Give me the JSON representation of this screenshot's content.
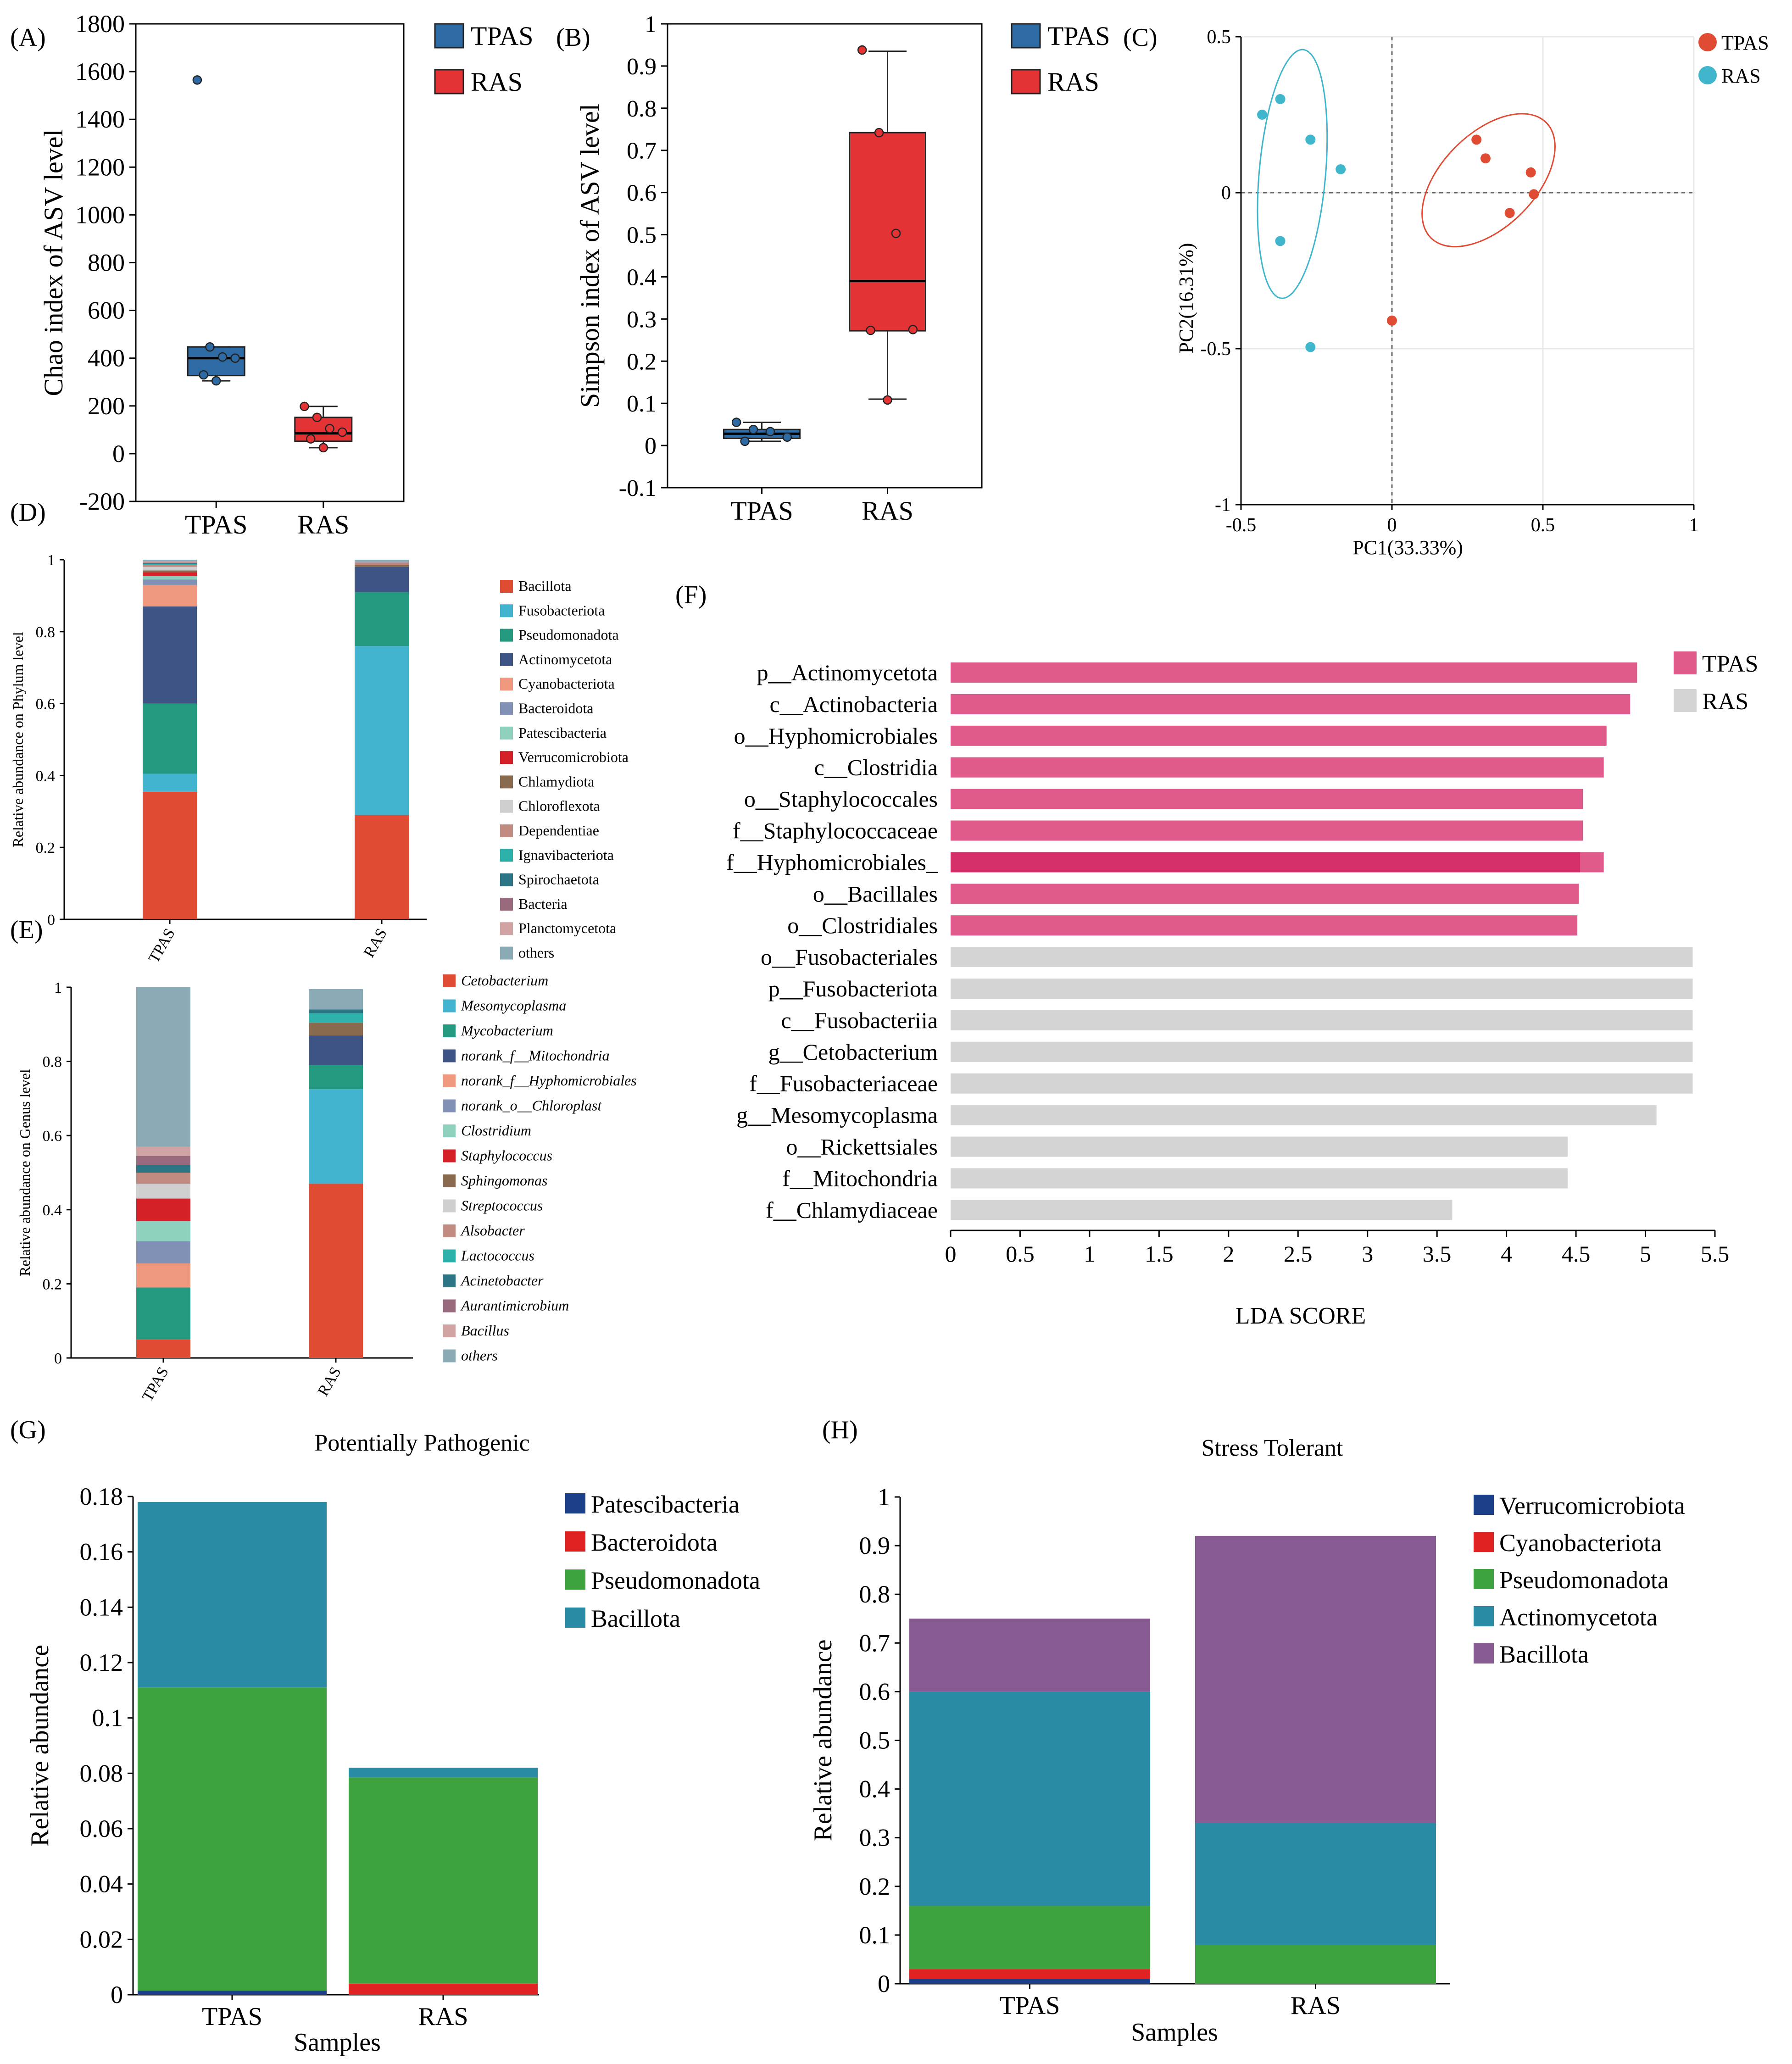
{
  "colors": {
    "tpas": "#2e6aa3",
    "ras": "#e33335",
    "pca_tpas": "#e04b34",
    "pca_ras": "#3fb6cc",
    "lefse_tpas": "#e05a8c",
    "lefse_tpas_dark": "#d6306a",
    "lefse_ras": "#d4d4d4",
    "lefse_ras_dark": "#c4c4c4",
    "axis": "#000000",
    "grid": "#e8e8e8"
  },
  "chart_data": [
    {
      "panel": "A",
      "type": "boxplot",
      "ylabel": "Chao index of ASV level",
      "ylim": [
        -200,
        1800
      ],
      "yticks": [
        -200,
        0,
        200,
        400,
        600,
        800,
        1000,
        1200,
        1400,
        1600,
        1800
      ],
      "categories": [
        "TPAS",
        "RAS"
      ],
      "legend": [
        "TPAS",
        "RAS"
      ],
      "legend_position": "right-outside",
      "boxes": [
        {
          "name": "TPAS",
          "q1": 327,
          "median": 400,
          "q3": 447,
          "whisker_low": 305,
          "whisker_high": 447,
          "points": [
            1565,
            447,
            405,
            400,
            330,
            305
          ]
        },
        {
          "name": "RAS",
          "q1": 52,
          "median": 85,
          "q3": 152,
          "whisker_low": 25,
          "whisker_high": 198,
          "points": [
            198,
            152,
            105,
            90,
            62,
            25
          ]
        }
      ]
    },
    {
      "panel": "B",
      "type": "boxplot",
      "ylabel": "Simpson index of ASV level",
      "ylim": [
        -0.1,
        1
      ],
      "yticks": [
        -0.1,
        0,
        0.1,
        0.2,
        0.3,
        0.4,
        0.5,
        0.6,
        0.7,
        0.8,
        0.9,
        1
      ],
      "categories": [
        "TPAS",
        "RAS"
      ],
      "legend": [
        "TPAS",
        "RAS"
      ],
      "legend_position": "right-outside",
      "boxes": [
        {
          "name": "TPAS",
          "q1": 0.017,
          "median": 0.028,
          "q3": 0.038,
          "whisker_low": 0.01,
          "whisker_high": 0.055,
          "points": [
            0.055,
            0.038,
            0.033,
            0.02,
            0.01
          ]
        },
        {
          "name": "RAS",
          "q1": 0.272,
          "median": 0.39,
          "q3": 0.742,
          "whisker_low": 0.11,
          "whisker_high": 0.935,
          "points": [
            0.938,
            0.742,
            0.503,
            0.275,
            0.273,
            0.108
          ]
        }
      ]
    },
    {
      "panel": "C",
      "type": "scatter",
      "xlabel": "PC1(33.33%)",
      "ylabel": "PC2(16.31%)",
      "xlim": [
        -0.5,
        1
      ],
      "ylim": [
        -1,
        0.5
      ],
      "xticks": [
        -0.5,
        0,
        0.5,
        1
      ],
      "yticks": [
        0.5,
        0,
        -0.5,
        -1
      ],
      "legend_position": "top-right",
      "series": [
        {
          "name": "TPAS",
          "points": [
            [
              0.28,
              0.17
            ],
            [
              0.31,
              0.11
            ],
            [
              0.46,
              0.065
            ],
            [
              0.47,
              -0.005
            ],
            [
              0.39,
              -0.065
            ],
            [
              0.0,
              -0.41
            ]
          ],
          "ellipse": {
            "cx": 0.32,
            "cy": 0.04,
            "rx": 0.27,
            "ry": 0.15,
            "angle": -45
          }
        },
        {
          "name": "RAS",
          "points": [
            [
              -0.43,
              0.25
            ],
            [
              -0.37,
              0.3
            ],
            [
              -0.27,
              0.17
            ],
            [
              -0.17,
              0.075
            ],
            [
              -0.37,
              -0.155
            ],
            [
              -0.27,
              -0.495
            ]
          ],
          "ellipse": {
            "cx": -0.33,
            "cy": 0.06,
            "rx": 0.11,
            "ry": 0.4,
            "angle": 5
          }
        }
      ]
    },
    {
      "panel": "D",
      "type": "bar",
      "stacked": true,
      "ylabel": "Relative abundance on Phylum level",
      "ylim": [
        0,
        1
      ],
      "yticks": [
        0,
        0.2,
        0.4,
        0.6,
        0.8,
        1
      ],
      "categories": [
        "TPAS",
        "RAS"
      ],
      "legend_position": "right-outside",
      "series": [
        {
          "name": "Bacillota",
          "color": "#e04b34",
          "values": [
            0.355,
            0.29
          ]
        },
        {
          "name": "Fusobacteriota",
          "color": "#42b4d0",
          "values": [
            0.05,
            0.47
          ]
        },
        {
          "name": "Pseudomonadota",
          "color": "#239a80",
          "values": [
            0.195,
            0.15
          ]
        },
        {
          "name": "Actinomycetota",
          "color": "#3d5485",
          "values": [
            0.27,
            0.07
          ]
        },
        {
          "name": "Cyanobacteriota",
          "color": "#f0987e",
          "values": [
            0.06,
            0.0
          ]
        },
        {
          "name": "Bacteroidota",
          "color": "#8091b5",
          "values": [
            0.015,
            0.0
          ]
        },
        {
          "name": "Patescibacteria",
          "color": "#8fd0bf",
          "values": [
            0.01,
            0.0
          ]
        },
        {
          "name": "Verrucomicrobiota",
          "color": "#d62027",
          "values": [
            0.01,
            0.0
          ]
        },
        {
          "name": "Chlamydiota",
          "color": "#8a6a4e",
          "values": [
            0.005,
            0.005
          ]
        },
        {
          "name": "Chloroflexota",
          "color": "#cfcfcf",
          "values": [
            0.01,
            0.0
          ]
        },
        {
          "name": "Dependentiae",
          "color": "#c28b82",
          "values": [
            0.005,
            0.005
          ]
        },
        {
          "name": "Ignavibacteriota",
          "color": "#2db1ab",
          "values": [
            0.003,
            0.0
          ]
        },
        {
          "name": "Spirochaetota",
          "color": "#2b7585",
          "values": [
            0.002,
            0.0
          ]
        },
        {
          "name": "Bacteria",
          "color": "#99697e",
          "values": [
            0.002,
            0.002
          ]
        },
        {
          "name": "Planctomycetota",
          "color": "#d1a3a3",
          "values": [
            0.003,
            0.002
          ]
        },
        {
          "name": "others",
          "color": "#8aaab5",
          "values": [
            0.005,
            0.006
          ]
        }
      ]
    },
    {
      "panel": "E",
      "type": "bar",
      "stacked": true,
      "ylabel": "Relative abundance on Genus level",
      "ylim": [
        0,
        1
      ],
      "yticks": [
        0,
        0.2,
        0.4,
        0.6,
        0.8,
        1
      ],
      "categories": [
        "TPAS",
        "RAS"
      ],
      "legend_position": "right-outside",
      "series": [
        {
          "name": "Cetobacterium",
          "color": "#e04b34",
          "values": [
            0.05,
            0.47
          ]
        },
        {
          "name": "Mesomycoplasma",
          "color": "#42b4d0",
          "values": [
            0.0,
            0.255
          ]
        },
        {
          "name": "Mycobacterium",
          "color": "#239a80",
          "values": [
            0.14,
            0.065
          ]
        },
        {
          "name": "norank_f__Mitochondria",
          "color": "#3d5485",
          "values": [
            0.0,
            0.08
          ]
        },
        {
          "name": "norank_f__Hyphomicrobiales",
          "color": "#f0987e",
          "values": [
            0.065,
            0.0
          ]
        },
        {
          "name": "norank_o__Chloroplast",
          "color": "#8091b5",
          "values": [
            0.06,
            0.0
          ]
        },
        {
          "name": "Clostridium",
          "color": "#8fd0bf",
          "values": [
            0.055,
            0.0
          ]
        },
        {
          "name": "Staphylococcus",
          "color": "#d62027",
          "values": [
            0.06,
            0.0
          ]
        },
        {
          "name": "Sphingomonas",
          "color": "#8a6a4e",
          "values": [
            0.0,
            0.035
          ]
        },
        {
          "name": "Streptococcus",
          "color": "#cfcfcf",
          "values": [
            0.04,
            0.0
          ]
        },
        {
          "name": "Alsobacter",
          "color": "#c28b82",
          "values": [
            0.03,
            0.0
          ]
        },
        {
          "name": "Lactococcus",
          "color": "#2db1ab",
          "values": [
            0.0,
            0.025
          ]
        },
        {
          "name": "Acinetobacter",
          "color": "#2b7585",
          "values": [
            0.02,
            0.01
          ]
        },
        {
          "name": "Aurantimicrobium",
          "color": "#99697e",
          "values": [
            0.025,
            0.0
          ]
        },
        {
          "name": "Bacillus",
          "color": "#d1a3a3",
          "values": [
            0.025,
            0.0
          ]
        },
        {
          "name": "others",
          "color": "#8aaab5",
          "values": [
            0.43,
            0.055
          ]
        }
      ]
    },
    {
      "panel": "F",
      "type": "bar",
      "orientation": "horizontal",
      "xlabel": "LDA SCORE",
      "xlim": [
        0,
        5.5
      ],
      "xticks": [
        0,
        0.5,
        1,
        1.5,
        2,
        2.5,
        3,
        3.5,
        4,
        4.5,
        5,
        5.5
      ],
      "legend": [
        "TPAS",
        "RAS"
      ],
      "legend_position": "top-right",
      "items": [
        {
          "label": "p__Actinomycetota",
          "value": 4.94,
          "group": "TPAS"
        },
        {
          "label": "c__Actinobacteria",
          "value": 4.89,
          "group": "TPAS"
        },
        {
          "label": "o__Hyphomicrobiales",
          "value": 4.72,
          "group": "TPAS"
        },
        {
          "label": "c__Clostridia",
          "value": 4.7,
          "group": "TPAS"
        },
        {
          "label": "o__Staphylococcales",
          "value": 4.55,
          "group": "TPAS"
        },
        {
          "label": "f__Staphylococcaceae",
          "value": 4.55,
          "group": "TPAS"
        },
        {
          "label": "f__Hyphomicrobiales_",
          "value": 4.7,
          "group": "TPAS",
          "inner_value": 4.53
        },
        {
          "label": "o__Bacillales",
          "value": 4.52,
          "group": "TPAS"
        },
        {
          "label": "o__Clostridiales",
          "value": 4.51,
          "group": "TPAS"
        },
        {
          "label": "o__Fusobacteriales",
          "value": 5.34,
          "group": "RAS"
        },
        {
          "label": "p__Fusobacteriota",
          "value": 5.34,
          "group": "RAS"
        },
        {
          "label": "c__Fusobacteriia",
          "value": 5.34,
          "group": "RAS"
        },
        {
          "label": "g__Cetobacterium",
          "value": 5.34,
          "group": "RAS"
        },
        {
          "label": "f__Fusobacteriaceae",
          "value": 5.34,
          "group": "RAS"
        },
        {
          "label": "g__Mesomycoplasma",
          "value": 5.08,
          "group": "RAS"
        },
        {
          "label": "o__Rickettsiales",
          "value": 4.44,
          "group": "RAS"
        },
        {
          "label": "f__Mitochondria",
          "value": 4.44,
          "group": "RAS"
        },
        {
          "label": "f__Chlamydiaceae",
          "value": 3.61,
          "group": "RAS"
        }
      ]
    },
    {
      "panel": "G",
      "type": "bar",
      "stacked": true,
      "title": "Potentially Pathogenic",
      "xlabel": "Samples",
      "ylabel": "Relative abundance",
      "ylim": [
        0,
        0.18
      ],
      "yticks": [
        0,
        0.02,
        0.04,
        0.06,
        0.08,
        0.1,
        0.12,
        0.14,
        0.16,
        0.18
      ],
      "categories": [
        "TPAS",
        "RAS"
      ],
      "legend_position": "right-outside",
      "series": [
        {
          "name": "Patescibacteria",
          "color": "#1c3f8a",
          "values": [
            0.0015,
            0.0
          ]
        },
        {
          "name": "Bacteroidota",
          "color": "#e02222",
          "values": [
            0.0,
            0.004
          ]
        },
        {
          "name": "Pseudomonadota",
          "color": "#3ea33e",
          "values": [
            0.1095,
            0.0745
          ]
        },
        {
          "name": "Bacillota",
          "color": "#2a8ca4",
          "values": [
            0.067,
            0.0035
          ]
        }
      ]
    },
    {
      "panel": "H",
      "type": "bar",
      "stacked": true,
      "title": "Stress Tolerant",
      "xlabel": "Samples",
      "ylabel": "Relative abundance",
      "ylim": [
        0,
        1
      ],
      "yticks": [
        0,
        0.1,
        0.2,
        0.3,
        0.4,
        0.5,
        0.6,
        0.7,
        0.8,
        0.9,
        1
      ],
      "categories": [
        "TPAS",
        "RAS"
      ],
      "legend_position": "right-outside",
      "series": [
        {
          "name": "Verrucomicrobiota",
          "color": "#1c3f8a",
          "values": [
            0.01,
            0.0
          ]
        },
        {
          "name": "Cyanobacteriota",
          "color": "#e02222",
          "values": [
            0.02,
            0.0
          ]
        },
        {
          "name": "Pseudomonadota",
          "color": "#3ea33e",
          "values": [
            0.13,
            0.08
          ]
        },
        {
          "name": "Actinomycetota",
          "color": "#2a8ca4",
          "values": [
            0.44,
            0.25
          ]
        },
        {
          "name": "Bacillota",
          "color": "#875a92",
          "values": [
            0.15,
            0.59
          ]
        }
      ]
    }
  ],
  "panel_labels": [
    "(A)",
    "(B)",
    "(C)",
    "(D)",
    "(E)",
    "(F)",
    "(G)",
    "(H)"
  ]
}
